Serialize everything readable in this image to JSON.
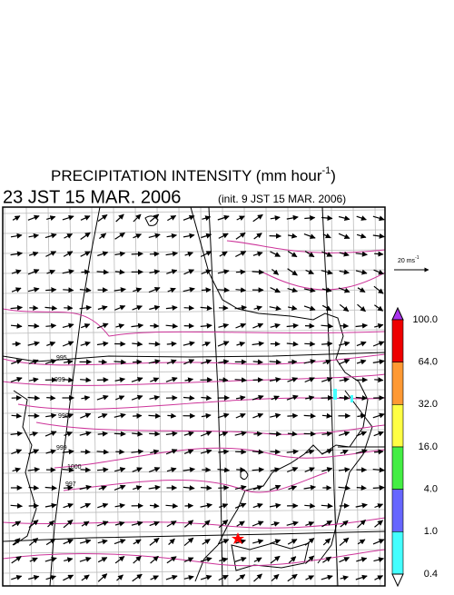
{
  "title": {
    "text": "PRECIPITATION INTENSITY (mm hour",
    "superscript": "-1",
    "close": ")"
  },
  "time": "23 JST 15 MAR. 2006",
  "init": "(init. 9 JST 15 MAR. 2006)",
  "wind_scale": {
    "label": "20 ms",
    "superscript": "-1"
  },
  "colorbar": {
    "labels": [
      "100.0",
      "64.0",
      "32.0",
      "16.0",
      "4.0",
      "1.0",
      "0.4"
    ],
    "over_color": "#aa33ee",
    "colors": [
      "#ee0000",
      "#ff9933",
      "#ffff44",
      "#44ee44",
      "#6666ff",
      "#44ffff"
    ],
    "under_color": "#ffffff"
  },
  "contour_labels": [
    "995",
    "999",
    "990",
    "999",
    "1000",
    "997"
  ]
}
